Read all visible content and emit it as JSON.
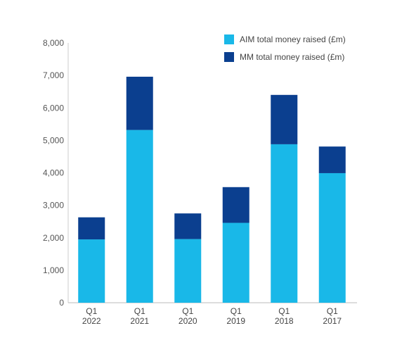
{
  "chart_data": {
    "type": "bar",
    "stacked": true,
    "categories": [
      [
        "Q1",
        "2022"
      ],
      [
        "Q1",
        "2021"
      ],
      [
        "Q1",
        "2020"
      ],
      [
        "Q1",
        "2019"
      ],
      [
        "Q1",
        "2018"
      ],
      [
        "Q1",
        "2017"
      ]
    ],
    "series": [
      {
        "name": "AIM total money raised (£m)",
        "color": "#19b8e8",
        "values": [
          1950,
          5320,
          1960,
          2460,
          4880,
          3990
        ]
      },
      {
        "name": "MM total money raised (£m)",
        "color": "#0b3f8f",
        "values": [
          680,
          1640,
          790,
          1100,
          1520,
          820
        ]
      }
    ],
    "yticks": [
      "0",
      "1,000",
      "2,000",
      "3,000",
      "4,000",
      "5,000",
      "6,000",
      "7,000",
      "8,000"
    ],
    "ylim": [
      0,
      8000
    ],
    "grid": false,
    "legend_position": "top-right",
    "title": "",
    "xlabel": "",
    "ylabel": ""
  }
}
